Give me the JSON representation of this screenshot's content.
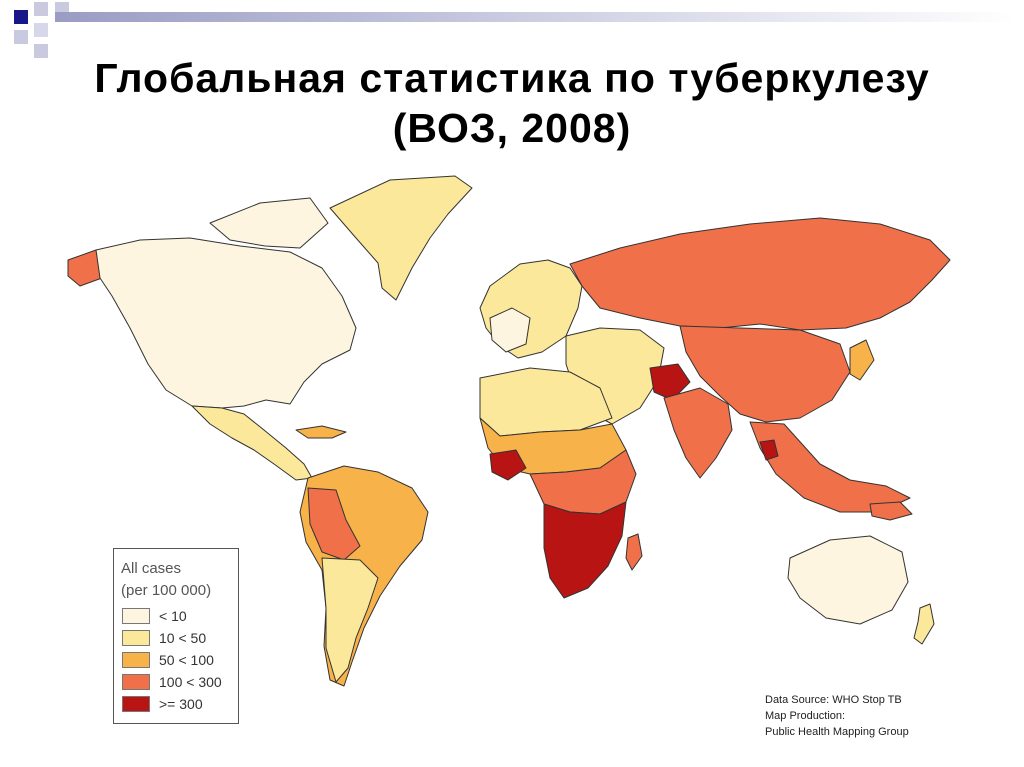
{
  "title": {
    "line1": "Глобальная статистика по туберкулезу",
    "line2": "(ВОЗ, 2008)"
  },
  "legend": {
    "heading1": "All cases",
    "heading2": "(per 100 000)",
    "items": [
      {
        "label": "< 10",
        "color": "#fdf5df"
      },
      {
        "label": "10 < 50",
        "color": "#fbe89a"
      },
      {
        "label": "50 < 100",
        "color": "#f8b24a"
      },
      {
        "label": "100 < 300",
        "color": "#f0704a"
      },
      {
        "label": ">= 300",
        "color": "#b81414"
      }
    ]
  },
  "source": {
    "line1": "Data Source: WHO Stop TB",
    "line2": "Map Production:",
    "line3": "Public Health Mapping Group"
  },
  "decoration_color": "#8d8fb8"
}
